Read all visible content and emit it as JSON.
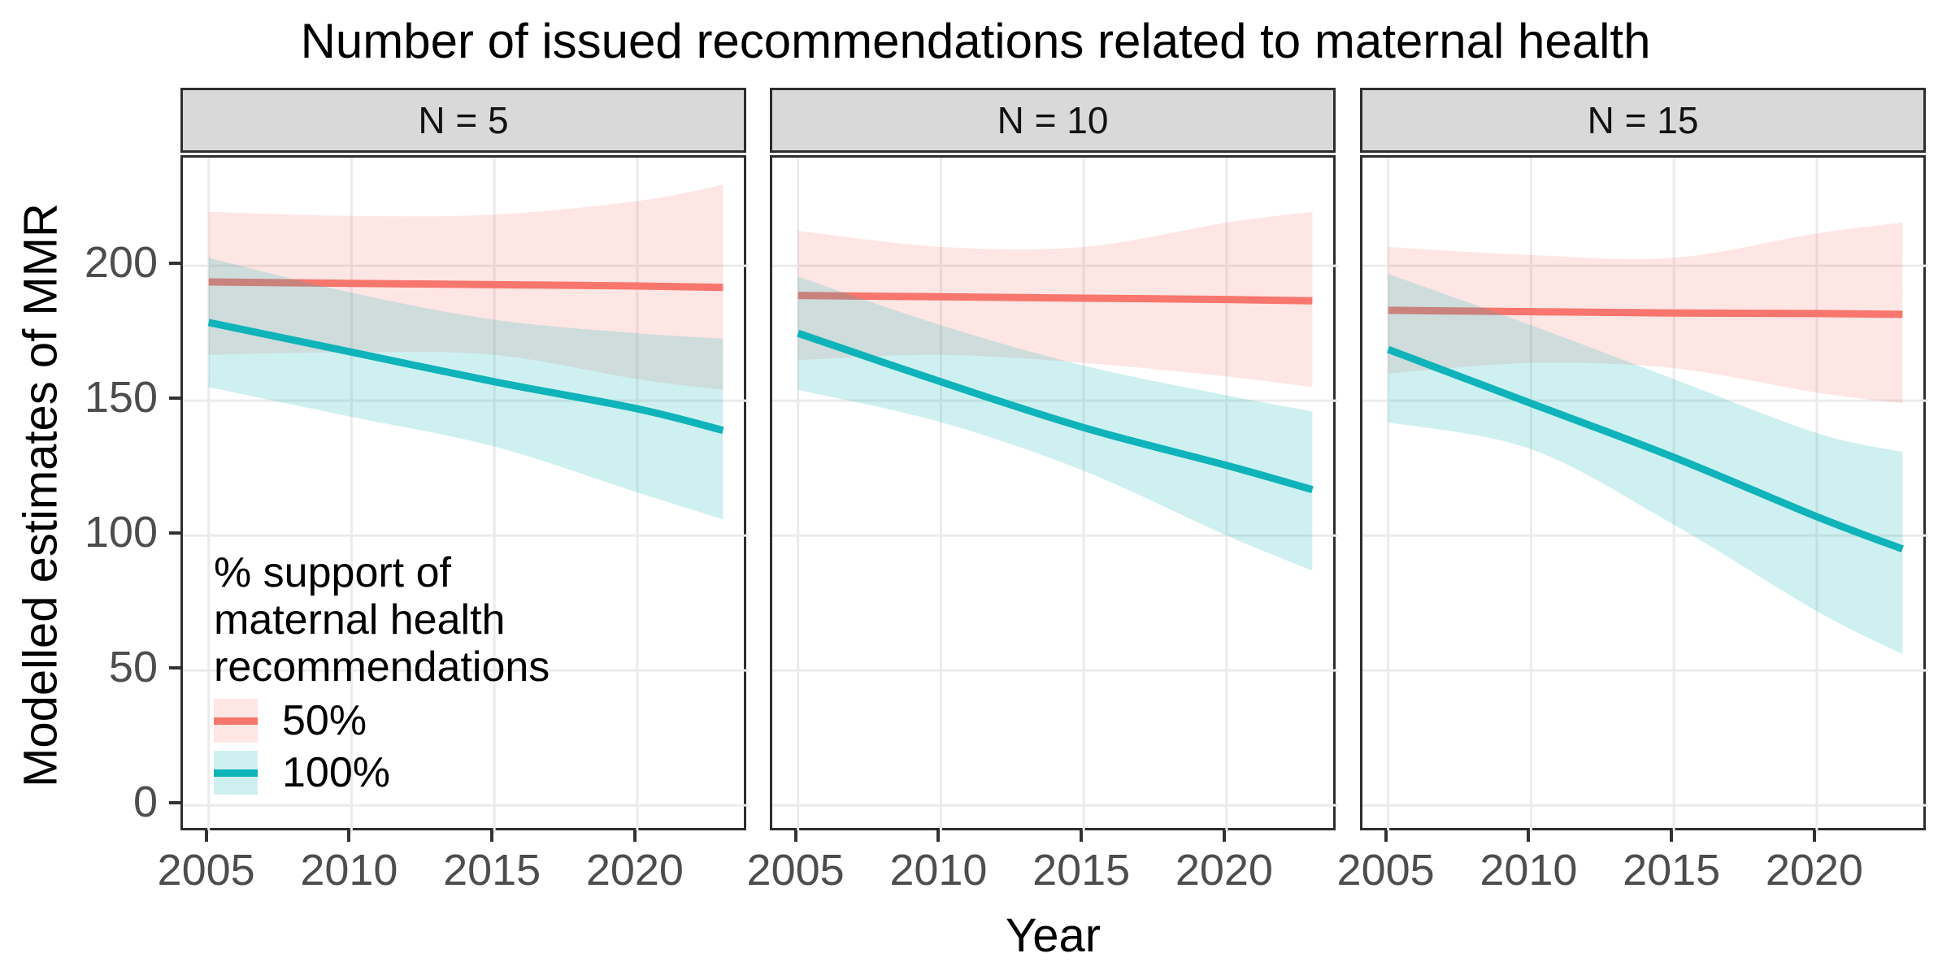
{
  "title": "Number of issued recommendations related to maternal health",
  "axes": {
    "x_title": "Year",
    "y_title": "Modelled estimates of MMR",
    "x_tick_labels": [
      "2005",
      "2010",
      "2015",
      "2020"
    ],
    "y_tick_labels": [
      "0",
      "50",
      "100",
      "150",
      "200"
    ]
  },
  "legend": {
    "title_lines": [
      "% support of",
      "maternal health",
      "recommendations"
    ],
    "items": [
      {
        "label": "50%",
        "line_color": "#F8766D",
        "fill_color": "rgba(248,118,109,0.18)"
      },
      {
        "label": "100%",
        "line_color": "#0FB3BA",
        "fill_color": "rgba(15,179,186,0.20)"
      }
    ]
  },
  "colors": {
    "grid": "#ebebeb",
    "panel_border": "#2e2e2e",
    "strip_bg": "#d9d9d9",
    "axis_text": "#4d4d4d",
    "tick_mark": "#333333",
    "line_50": "#F8766D",
    "line_100": "#0FB3BA",
    "ribbon_50": "rgba(248,118,109,0.18)",
    "ribbon_100": "rgba(15,179,186,0.20)"
  },
  "chart_data": {
    "type": "line",
    "title": "Number of issued recommendations related to maternal health",
    "xlabel": "Year",
    "ylabel": "Modelled estimates of MMR",
    "x": [
      2005,
      2010,
      2015,
      2020,
      2023
    ],
    "x_ticks": [
      2005,
      2010,
      2015,
      2020
    ],
    "y_ticks": [
      0,
      50,
      100,
      150,
      200
    ],
    "xlim": [
      2004.1,
      2023.9
    ],
    "ylim": [
      -10.2,
      240.1
    ],
    "grid": "major gridlines only, light gray on white, black panel border (theme_bw)",
    "legend_position": "inside lower-left of first facet",
    "facet_variable": "Number of issued recommendations (N)",
    "facets": [
      {
        "label": "N = 5",
        "series": [
          {
            "name": "50%",
            "line_color": "#F8766D",
            "values": [
              194,
              193.5,
              193,
              192.5,
              192
            ],
            "ci_upper": [
              220,
              218.5,
              219,
              224,
              230
            ],
            "ci_lower": [
              167,
              168,
              167,
              158,
              154
            ]
          },
          {
            "name": "100%",
            "line_color": "#0FB3BA",
            "values": [
              179,
              168,
              157,
              147,
              139
            ],
            "ci_upper": [
              203,
              190,
              180,
              175,
              173
            ],
            "ci_lower": [
              155,
              144,
              133,
              116,
              106
            ]
          }
        ]
      },
      {
        "label": "N = 10",
        "series": [
          {
            "name": "50%",
            "line_color": "#F8766D",
            "values": [
              189,
              188.5,
              188,
              187.5,
              187
            ],
            "ci_upper": [
              213,
              207,
              207,
              216,
              220
            ],
            "ci_lower": [
              165,
              167,
              164,
              159,
              155
            ]
          },
          {
            "name": "100%",
            "line_color": "#0FB3BA",
            "values": [
              175,
              157,
              140,
              126,
              117
            ],
            "ci_upper": [
              196,
              178,
              163,
              152,
              146
            ],
            "ci_lower": [
              154,
              142,
              124,
              100,
              87
            ]
          }
        ]
      },
      {
        "label": "N = 15",
        "series": [
          {
            "name": "50%",
            "line_color": "#F8766D",
            "values": [
              183.5,
              183,
              182.5,
              182.3,
              182
            ],
            "ci_upper": [
              207,
              204,
              203,
              212,
              216
            ],
            "ci_lower": [
              160,
              164,
              162,
              153,
              149
            ]
          },
          {
            "name": "100%",
            "line_color": "#0FB3BA",
            "values": [
              169,
              149,
              129,
              107,
              95
            ],
            "ci_upper": [
              197,
              178,
              158,
              138,
              131
            ],
            "ci_lower": [
              142,
              132,
              104,
              72,
              56
            ]
          }
        ]
      }
    ]
  }
}
